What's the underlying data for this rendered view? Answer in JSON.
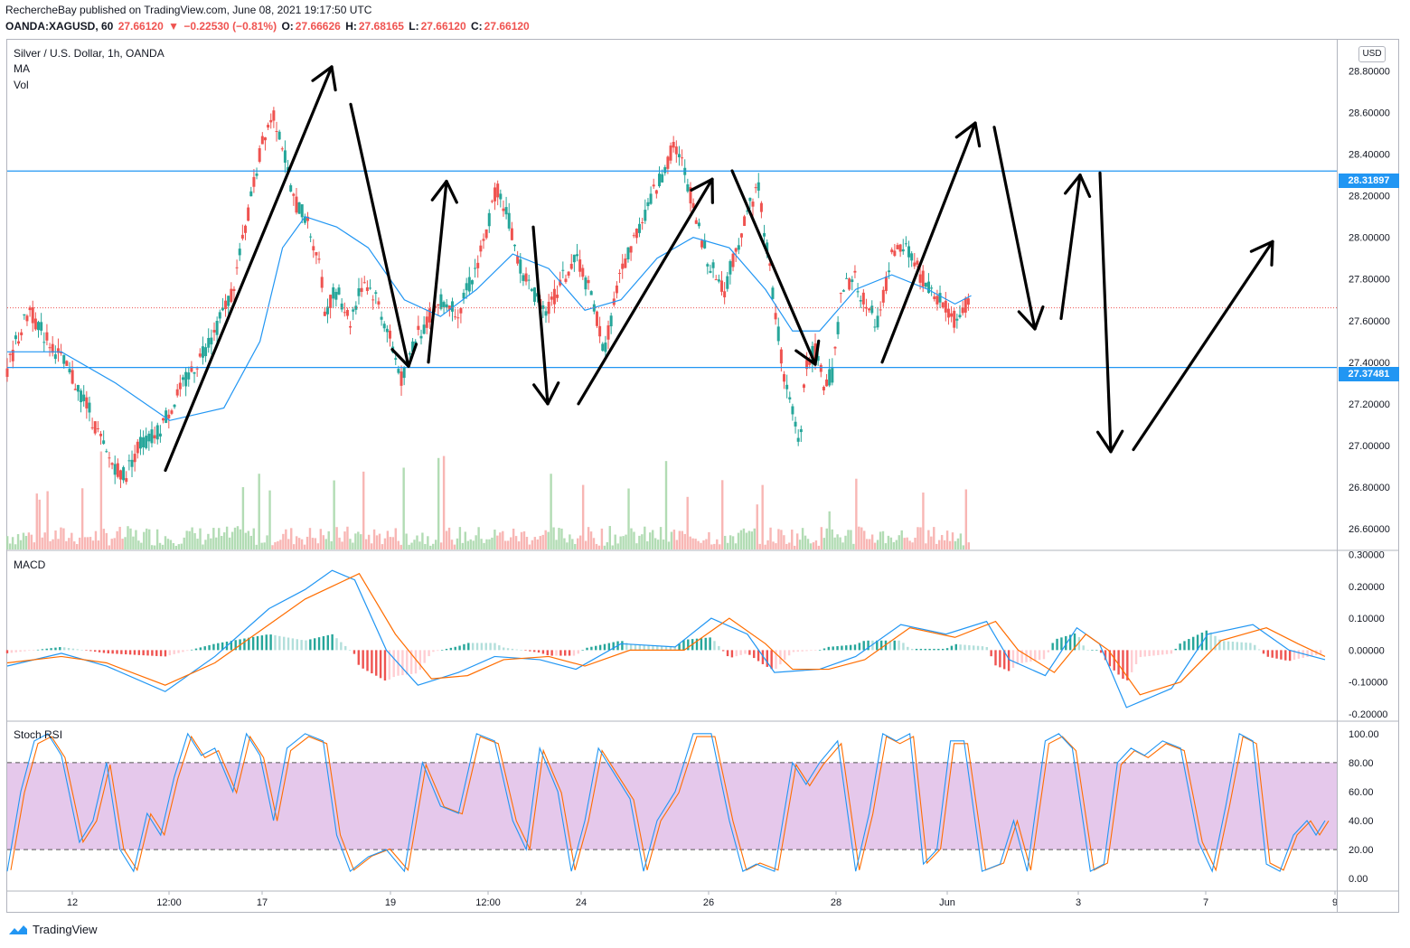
{
  "header": {
    "publisher": "RechercheBay published on TradingView.com, June 08, 2021 19:17:50 UTC",
    "symbol": "OANDA:XAGUSD, 60",
    "last": "27.66120",
    "change": "−0.22530 (−0.81%)",
    "open_label": "O:",
    "open": "27.66626",
    "high_label": "H:",
    "high": "27.68165",
    "low_label": "L:",
    "low": "27.66120",
    "close_label": "C:",
    "close": "27.66120"
  },
  "main_pane": {
    "title": "Silver / U.S. Dollar, 1h, OANDA",
    "indicator_ma": "MA",
    "indicator_vol": "Vol",
    "currency": "USD",
    "resistance_label": "28.31897",
    "support_label": "27.37481"
  },
  "macd_pane": {
    "title": "MACD"
  },
  "stoch_pane": {
    "title": "Stoch RSI"
  },
  "branding": {
    "name": "TradingView"
  },
  "colors": {
    "up": "#26a69a",
    "down": "#ef5350",
    "ma": "#2196f3",
    "signal": "#ff6d00",
    "band": "#e1bee7",
    "level": "#2196f3"
  },
  "chart_data": [
    {
      "type": "candlestick",
      "title": "Silver / U.S. Dollar, 1h, OANDA",
      "x_ticks": [
        "12",
        "12:00",
        "17",
        "19",
        "12:00",
        "24",
        "26",
        "28",
        "Jun",
        "3",
        "7",
        "9"
      ],
      "y_ticks": [
        "26.60000",
        "26.80000",
        "27.00000",
        "27.20000",
        "27.40000",
        "27.60000",
        "27.80000",
        "28.00000",
        "28.20000",
        "28.40000",
        "28.60000",
        "28.80000"
      ],
      "ylim": [
        26.5,
        28.95
      ],
      "horizontal_levels": [
        28.31897,
        27.37481
      ],
      "last_price": 27.6612,
      "price_path": [
        [
          0,
          27.35
        ],
        [
          10,
          27.5
        ],
        [
          25,
          27.65
        ],
        [
          38,
          27.55
        ],
        [
          55,
          27.45
        ],
        [
          75,
          27.3
        ],
        [
          88,
          27.2
        ],
        [
          110,
          26.95
        ],
        [
          130,
          26.85
        ],
        [
          145,
          27.0
        ],
        [
          165,
          27.05
        ],
        [
          190,
          27.25
        ],
        [
          210,
          27.4
        ],
        [
          230,
          27.55
        ],
        [
          250,
          27.75
        ],
        [
          262,
          28.0
        ],
        [
          275,
          28.3
        ],
        [
          285,
          28.5
        ],
        [
          295,
          28.6
        ],
        [
          305,
          28.45
        ],
        [
          315,
          28.2
        ],
        [
          330,
          28.1
        ],
        [
          345,
          27.9
        ],
        [
          352,
          27.65
        ],
        [
          365,
          27.75
        ],
        [
          380,
          27.6
        ],
        [
          395,
          27.8
        ],
        [
          410,
          27.7
        ],
        [
          425,
          27.5
        ],
        [
          438,
          27.3
        ],
        [
          450,
          27.5
        ],
        [
          465,
          27.6
        ],
        [
          480,
          27.7
        ],
        [
          500,
          27.65
        ],
        [
          515,
          27.8
        ],
        [
          530,
          28.0
        ],
        [
          542,
          28.25
        ],
        [
          555,
          28.1
        ],
        [
          565,
          27.9
        ],
        [
          580,
          27.75
        ],
        [
          600,
          27.65
        ],
        [
          615,
          27.8
        ],
        [
          632,
          27.9
        ],
        [
          648,
          27.7
        ],
        [
          662,
          27.45
        ],
        [
          675,
          27.75
        ],
        [
          690,
          27.95
        ],
        [
          705,
          28.1
        ],
        [
          720,
          28.25
        ],
        [
          740,
          28.45
        ],
        [
          752,
          28.3
        ],
        [
          765,
          28.05
        ],
        [
          780,
          27.85
        ],
        [
          795,
          27.75
        ],
        [
          808,
          27.95
        ],
        [
          822,
          28.15
        ],
        [
          832,
          28.25
        ],
        [
          842,
          27.95
        ],
        [
          852,
          27.6
        ],
        [
          862,
          27.3
        ],
        [
          870,
          27.15
        ],
        [
          878,
          27.0
        ],
        [
          885,
          27.4
        ],
        [
          895,
          27.45
        ],
        [
          905,
          27.3
        ],
        [
          915,
          27.35
        ],
        [
          925,
          27.75
        ],
        [
          940,
          27.8
        ],
        [
          952,
          27.65
        ],
        [
          965,
          27.6
        ],
        [
          980,
          27.9
        ],
        [
          995,
          27.95
        ],
        [
          1008,
          27.85
        ],
        [
          1020,
          27.75
        ],
        [
          1033,
          27.7
        ],
        [
          1041,
          27.65
        ],
        [
          1050,
          27.6
        ],
        [
          1060,
          27.68
        ],
        [
          1068,
          27.66
        ]
      ],
      "moving_average": [
        [
          0,
          27.45
        ],
        [
          60,
          27.45
        ],
        [
          120,
          27.3
        ],
        [
          180,
          27.12
        ],
        [
          240,
          27.18
        ],
        [
          280,
          27.5
        ],
        [
          305,
          27.95
        ],
        [
          330,
          28.1
        ],
        [
          365,
          28.05
        ],
        [
          400,
          27.95
        ],
        [
          440,
          27.7
        ],
        [
          480,
          27.62
        ],
        [
          520,
          27.75
        ],
        [
          560,
          27.92
        ],
        [
          600,
          27.85
        ],
        [
          640,
          27.65
        ],
        [
          680,
          27.7
        ],
        [
          720,
          27.9
        ],
        [
          760,
          28.0
        ],
        [
          800,
          27.95
        ],
        [
          840,
          27.75
        ],
        [
          870,
          27.55
        ],
        [
          900,
          27.55
        ],
        [
          940,
          27.75
        ],
        [
          980,
          27.82
        ],
        [
          1020,
          27.75
        ],
        [
          1050,
          27.68
        ],
        [
          1068,
          27.72
        ]
      ],
      "annotation_arrows": [
        [
          [
            183,
            26.88
          ],
          [
            367,
            28.82
          ]
        ],
        [
          [
            388,
            28.64
          ],
          [
            452,
            27.38
          ]
        ],
        [
          [
            474,
            27.4
          ],
          [
            494,
            28.27
          ]
        ],
        [
          [
            590,
            28.05
          ],
          [
            606,
            27.2
          ]
        ],
        [
          [
            640,
            27.2
          ],
          [
            788,
            28.28
          ]
        ],
        [
          [
            810,
            28.32
          ],
          [
            902,
            27.39
          ]
        ],
        [
          [
            976,
            27.4
          ],
          [
            1079,
            28.55
          ]
        ],
        [
          [
            1100,
            28.53
          ],
          [
            1145,
            27.56
          ]
        ],
        [
          [
            1174,
            27.61
          ],
          [
            1195,
            28.3
          ]
        ],
        [
          [
            1217,
            28.31
          ],
          [
            1229,
            26.97
          ]
        ],
        [
          [
            1254,
            26.98
          ],
          [
            1408,
            27.98
          ]
        ]
      ]
    },
    {
      "type": "line",
      "title": "MACD",
      "y_ticks": [
        "-0.20000",
        "-0.10000",
        "0.00000",
        "0.10000",
        "0.20000",
        "0.30000"
      ],
      "ylim": [
        -0.22,
        0.31
      ],
      "series": [],
      "macd_path": [
        [
          0,
          -0.05
        ],
        [
          60,
          -0.01
        ],
        [
          110,
          -0.05
        ],
        [
          175,
          -0.13
        ],
        [
          230,
          -0.02
        ],
        [
          290,
          0.13
        ],
        [
          330,
          0.19
        ],
        [
          360,
          0.25
        ],
        [
          385,
          0.22
        ],
        [
          420,
          0.0
        ],
        [
          455,
          -0.11
        ],
        [
          500,
          -0.07
        ],
        [
          540,
          -0.02
        ],
        [
          590,
          -0.03
        ],
        [
          630,
          -0.06
        ],
        [
          680,
          0.02
        ],
        [
          740,
          0.01
        ],
        [
          780,
          0.1
        ],
        [
          820,
          0.05
        ],
        [
          850,
          -0.07
        ],
        [
          900,
          -0.06
        ],
        [
          940,
          -0.02
        ],
        [
          990,
          0.08
        ],
        [
          1040,
          0.05
        ],
        [
          1085,
          0.09
        ],
        [
          1110,
          -0.03
        ],
        [
          1150,
          -0.08
        ],
        [
          1185,
          0.07
        ],
        [
          1210,
          0.02
        ],
        [
          1240,
          -0.18
        ],
        [
          1290,
          -0.12
        ],
        [
          1330,
          0.05
        ],
        [
          1380,
          0.08
        ],
        [
          1420,
          0.0
        ],
        [
          1460,
          -0.03
        ]
      ],
      "signal_path": [
        [
          0,
          -0.04
        ],
        [
          60,
          -0.02
        ],
        [
          110,
          -0.04
        ],
        [
          175,
          -0.11
        ],
        [
          230,
          -0.04
        ],
        [
          290,
          0.08
        ],
        [
          330,
          0.16
        ],
        [
          360,
          0.2
        ],
        [
          390,
          0.24
        ],
        [
          430,
          0.05
        ],
        [
          470,
          -0.09
        ],
        [
          510,
          -0.08
        ],
        [
          550,
          -0.03
        ],
        [
          600,
          -0.02
        ],
        [
          640,
          -0.05
        ],
        [
          690,
          0.0
        ],
        [
          750,
          0.0
        ],
        [
          800,
          0.1
        ],
        [
          840,
          0.02
        ],
        [
          870,
          -0.06
        ],
        [
          910,
          -0.06
        ],
        [
          950,
          -0.03
        ],
        [
          1000,
          0.07
        ],
        [
          1050,
          0.04
        ],
        [
          1095,
          0.09
        ],
        [
          1120,
          0.0
        ],
        [
          1160,
          -0.07
        ],
        [
          1195,
          0.05
        ],
        [
          1220,
          0.0
        ],
        [
          1255,
          -0.14
        ],
        [
          1300,
          -0.1
        ],
        [
          1345,
          0.03
        ],
        [
          1395,
          0.07
        ],
        [
          1430,
          0.02
        ],
        [
          1460,
          -0.02
        ]
      ]
    },
    {
      "type": "line",
      "title": "Stoch RSI",
      "y_ticks": [
        "0.00",
        "20.00",
        "40.00",
        "60.00",
        "80.00",
        "100.00"
      ],
      "ylim": [
        -8,
        108
      ],
      "band": [
        20,
        80
      ],
      "series": [],
      "k_path": [
        [
          0,
          5
        ],
        [
          15,
          60
        ],
        [
          30,
          95
        ],
        [
          45,
          100
        ],
        [
          60,
          85
        ],
        [
          80,
          25
        ],
        [
          95,
          40
        ],
        [
          110,
          80
        ],
        [
          125,
          20
        ],
        [
          140,
          5
        ],
        [
          155,
          45
        ],
        [
          170,
          30
        ],
        [
          185,
          70
        ],
        [
          200,
          100
        ],
        [
          215,
          85
        ],
        [
          230,
          90
        ],
        [
          250,
          60
        ],
        [
          265,
          100
        ],
        [
          280,
          85
        ],
        [
          295,
          40
        ],
        [
          310,
          90
        ],
        [
          330,
          100
        ],
        [
          350,
          95
        ],
        [
          365,
          30
        ],
        [
          380,
          5
        ],
        [
          400,
          15
        ],
        [
          420,
          20
        ],
        [
          440,
          5
        ],
        [
          460,
          80
        ],
        [
          480,
          50
        ],
        [
          500,
          45
        ],
        [
          520,
          100
        ],
        [
          540,
          95
        ],
        [
          560,
          40
        ],
        [
          575,
          20
        ],
        [
          590,
          90
        ],
        [
          610,
          60
        ],
        [
          625,
          5
        ],
        [
          640,
          40
        ],
        [
          655,
          90
        ],
        [
          670,
          75
        ],
        [
          690,
          55
        ],
        [
          705,
          5
        ],
        [
          720,
          40
        ],
        [
          740,
          60
        ],
        [
          760,
          100
        ],
        [
          780,
          100
        ],
        [
          800,
          40
        ],
        [
          815,
          5
        ],
        [
          830,
          10
        ],
        [
          850,
          5
        ],
        [
          870,
          80
        ],
        [
          885,
          65
        ],
        [
          900,
          80
        ],
        [
          920,
          95
        ],
        [
          940,
          5
        ],
        [
          955,
          45
        ],
        [
          970,
          100
        ],
        [
          985,
          95
        ],
        [
          1000,
          100
        ],
        [
          1015,
          10
        ],
        [
          1030,
          20
        ],
        [
          1045,
          95
        ],
        [
          1060,
          95
        ],
        [
          1080,
          5
        ],
        [
          1100,
          10
        ],
        [
          1115,
          40
        ],
        [
          1130,
          5
        ],
        [
          1150,
          95
        ],
        [
          1165,
          100
        ],
        [
          1180,
          90
        ],
        [
          1200,
          5
        ],
        [
          1215,
          10
        ],
        [
          1230,
          80
        ],
        [
          1245,
          90
        ],
        [
          1260,
          85
        ],
        [
          1280,
          95
        ],
        [
          1300,
          90
        ],
        [
          1320,
          25
        ],
        [
          1335,
          5
        ],
        [
          1350,
          50
        ],
        [
          1365,
          100
        ],
        [
          1380,
          95
        ],
        [
          1395,
          10
        ],
        [
          1410,
          5
        ],
        [
          1425,
          30
        ],
        [
          1440,
          40
        ],
        [
          1450,
          30
        ],
        [
          1460,
          40
        ]
      ]
    }
  ],
  "time_axis": [
    "12",
    "12:00",
    "17",
    "19",
    "12:00",
    "24",
    "26",
    "28",
    "Jun",
    "3",
    "7",
    "9"
  ]
}
